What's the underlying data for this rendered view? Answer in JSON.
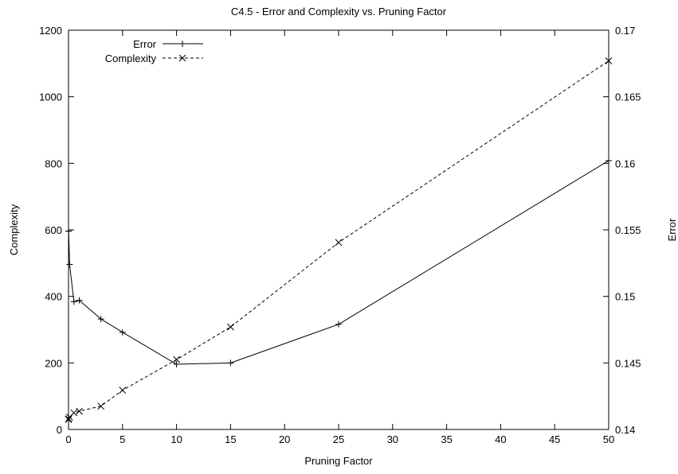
{
  "chart_data": {
    "type": "line",
    "title": "C4.5 - Error and Complexity vs. Pruning Factor",
    "xlabel": "Pruning Factor",
    "ylabel_left": "Complexity",
    "ylabel_right": "Error",
    "xlim": [
      0,
      50
    ],
    "ylim_left": [
      0,
      1200
    ],
    "ylim_right": [
      0.14,
      0.17
    ],
    "xticks": [
      "0",
      "5",
      "10",
      "15",
      "20",
      "25",
      "30",
      "35",
      "40",
      "45",
      "50"
    ],
    "yticks_left": [
      "0",
      "200",
      "400",
      "600",
      "800",
      "1000",
      "1200"
    ],
    "yticks_right": [
      "0.14",
      "0.145",
      "0.15",
      "0.155",
      "0.16",
      "0.165",
      "0.17"
    ],
    "grid": false,
    "legend_position": "top-left",
    "series": [
      {
        "name": "Error",
        "axis": "right",
        "line_style": "solid",
        "marker": "+",
        "x": [
          0,
          0.01,
          0.1,
          0.5,
          1,
          3,
          5,
          10,
          15,
          25,
          50
        ],
        "y": [
          0.1549,
          0.1549,
          0.1524,
          0.1496,
          0.1497,
          0.1483,
          0.1473,
          0.1449,
          0.145,
          0.1479,
          0.1602
        ]
      },
      {
        "name": "Complexity",
        "axis": "left",
        "line_style": "dashed",
        "marker": "x",
        "x": [
          0,
          0.01,
          0.1,
          0.5,
          1,
          3,
          5,
          10,
          15,
          25,
          50
        ],
        "y": [
          30,
          32,
          37,
          50,
          55,
          70,
          118,
          210,
          308,
          562,
          1108
        ]
      }
    ]
  }
}
